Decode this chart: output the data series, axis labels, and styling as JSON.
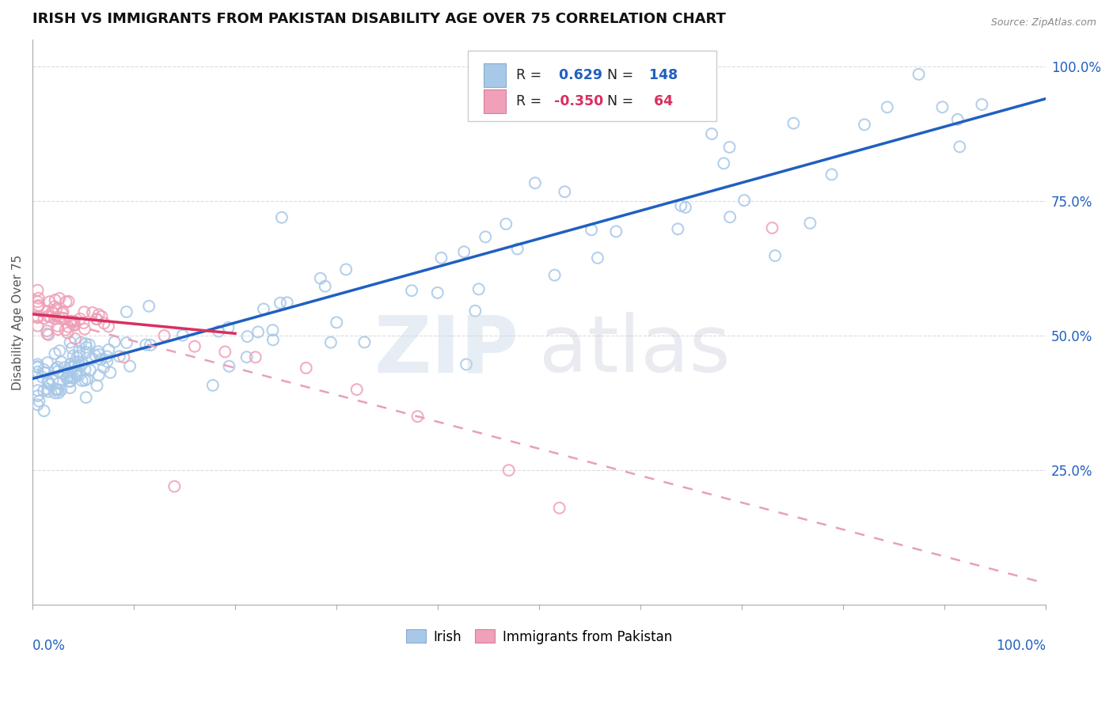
{
  "title": "IRISH VS IMMIGRANTS FROM PAKISTAN DISABILITY AGE OVER 75 CORRELATION CHART",
  "source": "Source: ZipAtlas.com",
  "ylabel": "Disability Age Over 75",
  "xlim": [
    0.0,
    1.0
  ],
  "ylim": [
    0.0,
    1.05
  ],
  "yticks": [
    0.25,
    0.5,
    0.75,
    1.0
  ],
  "ytick_labels": [
    "25.0%",
    "50.0%",
    "75.0%",
    "100.0%"
  ],
  "irish_R": 0.629,
  "irish_N": 148,
  "pakistan_R": -0.35,
  "pakistan_N": 64,
  "irish_marker_color": "#a8c8e8",
  "pakistan_marker_color": "#f0a0b8",
  "irish_line_color": "#2060c0",
  "pakistan_solid_color": "#d83060",
  "pakistan_dash_color": "#e8a0b8",
  "title_fontsize": 13,
  "legend_fontsize": 12,
  "axis_label_fontsize": 11,
  "tick_fontsize": 12,
  "background_color": "#ffffff",
  "irish_line_intercept": 0.42,
  "irish_line_slope": 0.52,
  "pakistan_solid_intercept": 0.54,
  "pakistan_solid_slope": -0.18,
  "pakistan_dash_intercept": 0.54,
  "pakistan_dash_slope": -0.5
}
